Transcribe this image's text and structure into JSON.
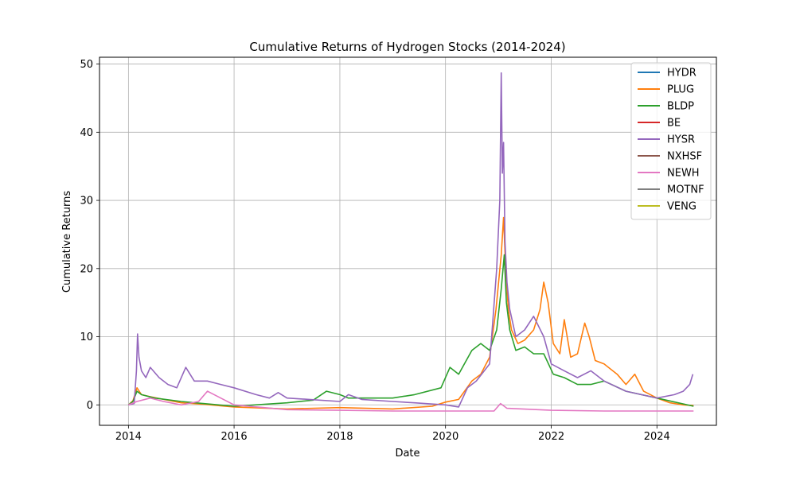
{
  "chart_data": {
    "type": "line",
    "title": "Cumulative Returns of Hydrogen Stocks (2014-2024)",
    "xlabel": "Date",
    "ylabel": "Cumulative Returns",
    "xlim": [
      "2013-06-15",
      "2025-02-15"
    ],
    "ylim": [
      -3.0,
      51.0
    ],
    "xticks": [
      "2014",
      "2016",
      "2018",
      "2020",
      "2022",
      "2024"
    ],
    "yticks": [
      0,
      10,
      20,
      30,
      40,
      50
    ],
    "grid": true,
    "legend_position": "upper-right",
    "series": [
      {
        "name": "HYDR",
        "color": "#1f77b4",
        "points": []
      },
      {
        "name": "PLUG",
        "color": "#ff7f0e",
        "points": [
          [
            "2014-01-01",
            0
          ],
          [
            "2014-02-01",
            0.6
          ],
          [
            "2014-03-01",
            2.5
          ],
          [
            "2014-04-01",
            1.5
          ],
          [
            "2014-06-01",
            1.2
          ],
          [
            "2014-09-01",
            0.8
          ],
          [
            "2015-01-01",
            0.3
          ],
          [
            "2015-06-01",
            0.1
          ],
          [
            "2016-01-01",
            -0.3
          ],
          [
            "2017-01-01",
            -0.6
          ],
          [
            "2018-01-01",
            -0.4
          ],
          [
            "2019-01-01",
            -0.6
          ],
          [
            "2019-10-01",
            -0.2
          ],
          [
            "2020-01-01",
            0.4
          ],
          [
            "2020-04-01",
            0.8
          ],
          [
            "2020-07-01",
            3.5
          ],
          [
            "2020-09-01",
            4.5
          ],
          [
            "2020-11-01",
            7.0
          ],
          [
            "2020-12-15",
            14.0
          ],
          [
            "2021-01-20",
            22.0
          ],
          [
            "2021-02-05",
            27.5
          ],
          [
            "2021-02-20",
            20.0
          ],
          [
            "2021-03-10",
            14.0
          ],
          [
            "2021-04-01",
            11.0
          ],
          [
            "2021-05-15",
            9.0
          ],
          [
            "2021-07-01",
            9.5
          ],
          [
            "2021-09-01",
            11.0
          ],
          [
            "2021-10-15",
            14.0
          ],
          [
            "2021-11-10",
            18.0
          ],
          [
            "2021-12-10",
            15.0
          ],
          [
            "2022-01-15",
            9.0
          ],
          [
            "2022-03-01",
            7.5
          ],
          [
            "2022-04-01",
            12.5
          ],
          [
            "2022-05-15",
            7.0
          ],
          [
            "2022-07-01",
            7.5
          ],
          [
            "2022-08-20",
            12.0
          ],
          [
            "2022-09-20",
            10.0
          ],
          [
            "2022-11-01",
            6.5
          ],
          [
            "2023-01-01",
            6.0
          ],
          [
            "2023-04-01",
            4.5
          ],
          [
            "2023-06-01",
            3.0
          ],
          [
            "2023-08-01",
            4.5
          ],
          [
            "2023-10-01",
            2.0
          ],
          [
            "2024-01-01",
            1.0
          ],
          [
            "2024-04-01",
            0.3
          ],
          [
            "2024-07-01",
            0.0
          ],
          [
            "2024-09-10",
            -0.1
          ]
        ]
      },
      {
        "name": "BLDP",
        "color": "#2ca02c",
        "points": [
          [
            "2014-01-01",
            0
          ],
          [
            "2014-02-01",
            0.5
          ],
          [
            "2014-03-01",
            2.0
          ],
          [
            "2014-04-01",
            1.5
          ],
          [
            "2014-07-01",
            1.0
          ],
          [
            "2015-01-01",
            0.5
          ],
          [
            "2015-06-01",
            0.2
          ],
          [
            "2016-01-01",
            -0.2
          ],
          [
            "2017-01-01",
            0.3
          ],
          [
            "2017-07-01",
            0.7
          ],
          [
            "2017-10-01",
            2.0
          ],
          [
            "2018-01-01",
            1.5
          ],
          [
            "2018-03-01",
            1.0
          ],
          [
            "2019-01-01",
            1.0
          ],
          [
            "2019-06-01",
            1.5
          ],
          [
            "2019-12-01",
            2.5
          ],
          [
            "2020-02-01",
            5.5
          ],
          [
            "2020-04-01",
            4.5
          ],
          [
            "2020-07-01",
            8.0
          ],
          [
            "2020-09-01",
            9.0
          ],
          [
            "2020-11-01",
            8.0
          ],
          [
            "2020-12-20",
            11.0
          ],
          [
            "2021-01-20",
            17.0
          ],
          [
            "2021-02-10",
            22.0
          ],
          [
            "2021-02-25",
            15.0
          ],
          [
            "2021-03-20",
            11.0
          ],
          [
            "2021-05-01",
            8.0
          ],
          [
            "2021-07-01",
            8.5
          ],
          [
            "2021-09-01",
            7.5
          ],
          [
            "2021-11-10",
            7.5
          ],
          [
            "2022-01-15",
            4.5
          ],
          [
            "2022-04-01",
            4.0
          ],
          [
            "2022-07-01",
            3.0
          ],
          [
            "2022-10-01",
            3.0
          ],
          [
            "2023-01-01",
            3.5
          ],
          [
            "2023-06-01",
            2.0
          ],
          [
            "2024-01-01",
            1.0
          ],
          [
            "2024-09-10",
            -0.2
          ]
        ]
      },
      {
        "name": "BE",
        "color": "#d62728",
        "points": []
      },
      {
        "name": "HYSR",
        "color": "#9467bd",
        "points": [
          [
            "2014-01-01",
            0
          ],
          [
            "2014-02-10",
            0.2
          ],
          [
            "2014-02-25",
            5.0
          ],
          [
            "2014-03-05",
            10.4
          ],
          [
            "2014-03-15",
            7.0
          ],
          [
            "2014-04-01",
            5.0
          ],
          [
            "2014-05-01",
            4.0
          ],
          [
            "2014-06-01",
            5.5
          ],
          [
            "2014-08-01",
            4.0
          ],
          [
            "2014-10-01",
            3.0
          ],
          [
            "2014-12-01",
            2.5
          ],
          [
            "2015-02-01",
            5.5
          ],
          [
            "2015-04-01",
            3.5
          ],
          [
            "2015-07-01",
            3.5
          ],
          [
            "2015-10-01",
            3.0
          ],
          [
            "2016-01-01",
            2.5
          ],
          [
            "2016-06-01",
            1.5
          ],
          [
            "2016-09-01",
            1.0
          ],
          [
            "2016-11-01",
            1.8
          ],
          [
            "2017-01-01",
            1.0
          ],
          [
            "2017-06-01",
            0.8
          ],
          [
            "2018-01-01",
            0.5
          ],
          [
            "2018-03-01",
            1.5
          ],
          [
            "2018-06-01",
            0.8
          ],
          [
            "2019-01-01",
            0.5
          ],
          [
            "2019-06-01",
            0.3
          ],
          [
            "2020-01-01",
            0.0
          ],
          [
            "2020-04-01",
            -0.3
          ],
          [
            "2020-06-01",
            2.5
          ],
          [
            "2020-08-01",
            3.5
          ],
          [
            "2020-11-01",
            6.0
          ],
          [
            "2020-12-20",
            20.0
          ],
          [
            "2021-01-10",
            30.0
          ],
          [
            "2021-01-20",
            48.7
          ],
          [
            "2021-01-28",
            34.0
          ],
          [
            "2021-02-05",
            38.5
          ],
          [
            "2021-02-15",
            24.0
          ],
          [
            "2021-03-01",
            18.0
          ],
          [
            "2021-03-20",
            14.0
          ],
          [
            "2021-05-01",
            10.0
          ],
          [
            "2021-07-01",
            11.0
          ],
          [
            "2021-09-01",
            13.0
          ],
          [
            "2021-11-10",
            10.0
          ],
          [
            "2022-01-01",
            6.0
          ],
          [
            "2022-04-01",
            5.0
          ],
          [
            "2022-07-01",
            4.0
          ],
          [
            "2022-10-01",
            5.0
          ],
          [
            "2023-01-01",
            3.5
          ],
          [
            "2023-06-01",
            2.0
          ],
          [
            "2024-01-01",
            1.0
          ],
          [
            "2024-05-01",
            1.5
          ],
          [
            "2024-07-01",
            2.0
          ],
          [
            "2024-08-15",
            3.0
          ],
          [
            "2024-09-05",
            4.5
          ]
        ]
      },
      {
        "name": "NXHSF",
        "color": "#8c564b",
        "points": []
      },
      {
        "name": "NEWH",
        "color": "#e377c2",
        "points": [
          [
            "2014-01-01",
            0
          ],
          [
            "2014-03-01",
            0.5
          ],
          [
            "2014-06-01",
            1.0
          ],
          [
            "2014-09-01",
            0.5
          ],
          [
            "2015-01-01",
            0.0
          ],
          [
            "2015-05-01",
            0.5
          ],
          [
            "2015-07-01",
            2.0
          ],
          [
            "2015-10-01",
            1.0
          ],
          [
            "2016-01-01",
            0.0
          ],
          [
            "2017-01-01",
            -0.7
          ],
          [
            "2018-01-01",
            -0.8
          ],
          [
            "2019-01-01",
            -0.9
          ],
          [
            "2020-01-01",
            -0.9
          ],
          [
            "2020-12-01",
            -0.9
          ],
          [
            "2021-01-15",
            0.2
          ],
          [
            "2021-03-01",
            -0.5
          ],
          [
            "2022-01-01",
            -0.8
          ],
          [
            "2023-01-01",
            -0.9
          ],
          [
            "2024-09-10",
            -0.9
          ]
        ]
      },
      {
        "name": "MOTNF",
        "color": "#7f7f7f",
        "points": []
      },
      {
        "name": "VENG",
        "color": "#bcbd22",
        "points": []
      }
    ]
  }
}
